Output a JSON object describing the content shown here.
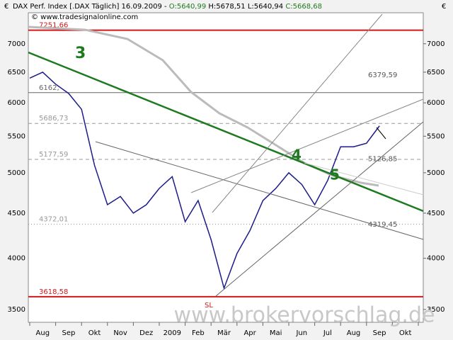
{
  "chart_data": {
    "type": "line",
    "title": "DAX Perf. Index [.DAX Täglich] 16.09.2009 -",
    "ohlc": [
      "O:5640,99",
      "H:5678,51",
      "L:5640,94",
      "C:5668,68"
    ],
    "source": "© www.tradesignalonline.com",
    "currency": "€",
    "watermark": "www.brokervorschlag.de",
    "annotations": [
      "3",
      "4",
      "5",
      "SL"
    ],
    "log_scale": true,
    "categories": [
      null,
      "Aug",
      null,
      "Sep",
      null,
      "Okt",
      null,
      "Nov",
      null,
      "Dez",
      null,
      "2009",
      null,
      "Feb",
      null,
      "Mär",
      null,
      "Apr",
      null,
      "Mai",
      null,
      "Jun",
      null,
      "Jul",
      null,
      "Aug",
      null,
      "Sep",
      null,
      "Okt",
      null
    ],
    "series": [
      {
        "color": "#1c1c8a",
        "values": [
          6400,
          6500,
          6300,
          6150,
          5900,
          5100,
          4600,
          4700,
          4500,
          4600,
          4800,
          4950,
          4400,
          4650,
          4200,
          3700,
          4050,
          4300,
          4650,
          4800,
          5000,
          4850,
          4600,
          4900,
          5350,
          5350,
          5400,
          5650,
          null,
          null,
          null
        ]
      }
    ],
    "ylim": [
      3385,
      7590
    ],
    "yticks": [
      3500,
      4000,
      4500,
      5000,
      5500,
      6000,
      6500,
      7000
    ],
    "levels": [
      {
        "value": 7251.66,
        "label": "7251,66",
        "color": "#d11919"
      },
      {
        "value": 6162,
        "label": "6162,",
        "color": "#666666"
      },
      {
        "value": 5686.73,
        "label": "5686,73",
        "color": "#999999"
      },
      {
        "value": 5177.59,
        "label": "5177,59",
        "color": "#999999"
      },
      {
        "value": 4372.01,
        "label": "4372,01",
        "color": "#999999"
      },
      {
        "value": 3618.58,
        "label": "3618,58",
        "color": "#d11919"
      }
    ],
    "right_levels": [
      {
        "value": 6379.59,
        "label": "6379,59"
      },
      {
        "value": 5126.85,
        "label": "5126,85"
      },
      {
        "value": 4319.45,
        "label": "4319,45"
      }
    ]
  }
}
